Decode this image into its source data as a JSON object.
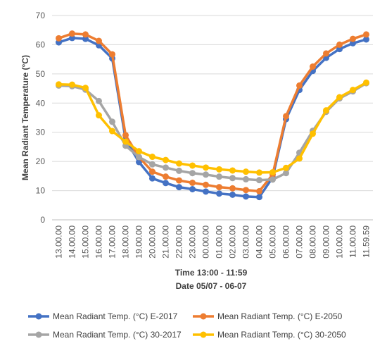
{
  "chart_data": {
    "type": "line",
    "title": "",
    "ylabel": "Mean Radiant Temperature  (°C)",
    "xlabel": "Time 13:00 - 11:59",
    "xlabel2": "Date 05/07 - 06-07",
    "ylim": [
      0,
      70
    ],
    "yticks": [
      0,
      10,
      20,
      30,
      40,
      50,
      60,
      70
    ],
    "grid": true,
    "legend_position": "bottom",
    "categories": [
      "13.00.00",
      "14.00.00",
      "15.00.00",
      "16.00.00",
      "17.00.00",
      "18.00.00",
      "19.00.00",
      "20.00.00",
      "21.00.00",
      "22.00.00",
      "23.00.00",
      "00.00.00",
      "01.00.00",
      "02.00.00",
      "03.00.00",
      "04.00.00",
      "05.00.00",
      "06.00.00",
      "07.00.00",
      "08.00.00",
      "09.00.00",
      "10.00.00",
      "11.00.00",
      "11.59.59"
    ],
    "series": [
      {
        "name": "Mean Radiant Temp.  (°C) E-2017",
        "color": "#4472C4",
        "values": [
          60.8,
          62.3,
          62.0,
          59.8,
          55.3,
          27.5,
          19.8,
          14.2,
          12.6,
          11.2,
          10.5,
          9.7,
          9.0,
          8.6,
          8.0,
          7.8,
          14.5,
          34.5,
          44.5,
          51.0,
          55.5,
          58.5,
          60.5,
          61.8
        ]
      },
      {
        "name": "Mean Radiant Temp.  (°C) E-2050",
        "color": "#ED7D31",
        "values": [
          62.2,
          63.8,
          63.5,
          61.3,
          56.7,
          29.0,
          21.5,
          16.5,
          14.8,
          13.5,
          12.7,
          12.0,
          11.2,
          10.8,
          10.2,
          9.8,
          15.5,
          35.5,
          46.0,
          52.5,
          57.0,
          60.0,
          62.0,
          63.5
        ]
      },
      {
        "name": "Mean Radiant Temp.  (°C) 30-2017",
        "color": "#A5A5A5",
        "values": [
          46.0,
          45.8,
          44.6,
          40.7,
          33.6,
          25.4,
          21.5,
          19.0,
          17.9,
          16.8,
          16.0,
          15.5,
          14.8,
          14.3,
          13.9,
          13.6,
          13.8,
          16.0,
          23.0,
          30.5,
          37.0,
          41.6,
          44.0,
          46.8
        ]
      },
      {
        "name": "Mean Radiant Temp.  (°C) 30-2050",
        "color": "#FFC000",
        "values": [
          46.4,
          46.3,
          45.2,
          35.8,
          30.4,
          26.8,
          23.5,
          21.6,
          20.5,
          19.3,
          18.6,
          17.9,
          17.3,
          16.9,
          16.5,
          16.2,
          16.3,
          17.8,
          21.0,
          29.5,
          37.5,
          42.0,
          44.5,
          47.0
        ]
      }
    ]
  }
}
